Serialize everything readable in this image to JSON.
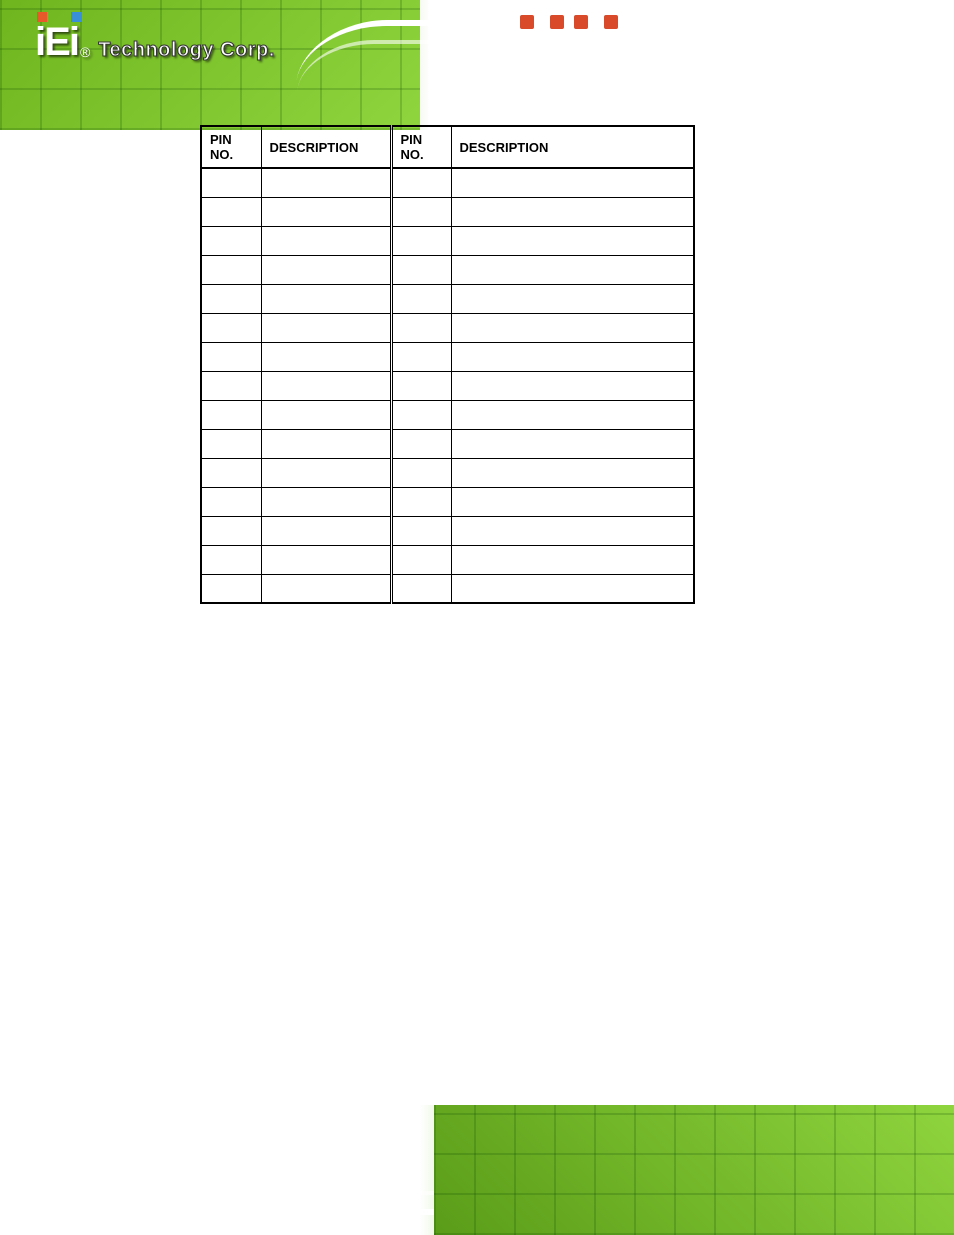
{
  "brand": {
    "logo_text": "iEi",
    "tagline": "Technology Corp.",
    "registered": "®"
  },
  "table": {
    "headers": {
      "pin_a": "PIN NO.",
      "desc_a": "DESCRIPTION",
      "pin_b": "PIN NO.",
      "desc_b": "DESCRIPTION"
    },
    "rows": [
      {
        "pa": "",
        "da": "",
        "pb": "",
        "db": ""
      },
      {
        "pa": "",
        "da": "",
        "pb": "",
        "db": ""
      },
      {
        "pa": "",
        "da": "",
        "pb": "",
        "db": ""
      },
      {
        "pa": "",
        "da": "",
        "pb": "",
        "db": ""
      },
      {
        "pa": "",
        "da": "",
        "pb": "",
        "db": ""
      },
      {
        "pa": "",
        "da": "",
        "pb": "",
        "db": ""
      },
      {
        "pa": "",
        "da": "",
        "pb": "",
        "db": ""
      },
      {
        "pa": "",
        "da": "",
        "pb": "",
        "db": ""
      },
      {
        "pa": "",
        "da": "",
        "pb": "",
        "db": ""
      },
      {
        "pa": "",
        "da": "",
        "pb": "",
        "db": ""
      },
      {
        "pa": "",
        "da": "",
        "pb": "",
        "db": ""
      },
      {
        "pa": "",
        "da": "",
        "pb": "",
        "db": ""
      },
      {
        "pa": "",
        "da": "",
        "pb": "",
        "db": ""
      },
      {
        "pa": "",
        "da": "",
        "pb": "",
        "db": ""
      },
      {
        "pa": "",
        "da": "",
        "pb": "",
        "db": ""
      }
    ]
  },
  "colors": {
    "banner_green_light": "#8fd53e",
    "banner_green_dark": "#5a9c18",
    "accent_orange": "#e85a2a",
    "accent_blue": "#3a8fd9",
    "border": "#000000"
  }
}
